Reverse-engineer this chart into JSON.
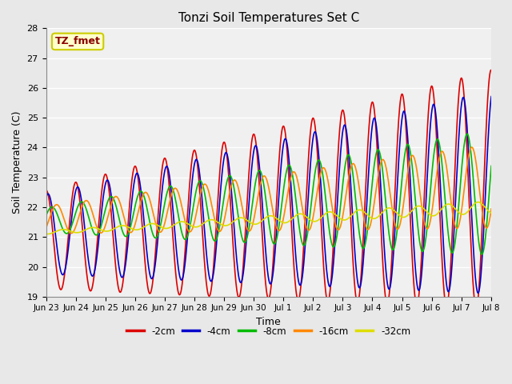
{
  "title": "Tonzi Soil Temperatures Set C",
  "xlabel": "Time",
  "ylabel": "Soil Temperature (C)",
  "ylim": [
    19.0,
    28.0
  ],
  "yticks": [
    19.0,
    20.0,
    21.0,
    22.0,
    23.0,
    24.0,
    25.0,
    26.0,
    27.0,
    28.0
  ],
  "annotation_text": "TZ_fmet",
  "annotation_color": "#8B0000",
  "annotation_bg": "#FFFFCC",
  "annotation_border": "#CCCC00",
  "series": [
    {
      "label": "-2cm",
      "color": "#DD0000",
      "lw": 1.2
    },
    {
      "label": "-4cm",
      "color": "#0000CC",
      "lw": 1.2
    },
    {
      "label": "-8cm",
      "color": "#00BB00",
      "lw": 1.2
    },
    {
      "label": "-16cm",
      "color": "#FF8800",
      "lw": 1.2
    },
    {
      "label": "-32cm",
      "color": "#DDDD00",
      "lw": 1.2
    }
  ],
  "bg_color": "#E8E8E8",
  "plot_bg": "#F0F0F0",
  "grid_color": "#FFFFFF",
  "xlim": [
    0,
    15
  ],
  "tick_positions": [
    0,
    1,
    2,
    3,
    4,
    5,
    6,
    7,
    8,
    9,
    10,
    11,
    12,
    13,
    14,
    15
  ],
  "tick_labels": [
    "Jun 23",
    "Jun 24",
    "Jun 25",
    "Jun 26",
    "Jun 27",
    "Jun 28",
    "Jun 29",
    "Jun 30",
    "Jul 1",
    "Jul 2",
    "Jul 3",
    "Jul 4",
    "Jul 5",
    "Jul 6",
    "Jul 7",
    "Jul 8"
  ]
}
